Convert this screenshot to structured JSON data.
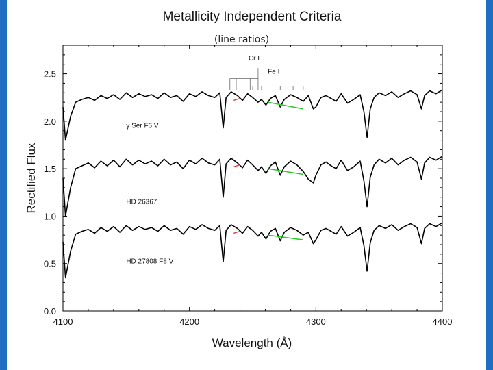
{
  "chart_data": {
    "type": "line",
    "title": "Metallicity Independent Criteria",
    "subtitle": "(line ratios)",
    "xlabel": "Wavelength (Å)",
    "ylabel": "Rectified Flux",
    "xlim": [
      4100,
      4400
    ],
    "ylim": [
      0.0,
      2.8
    ],
    "xticks": [
      4100,
      4200,
      4300,
      4400
    ],
    "yticks": [
      0.0,
      0.5,
      1.0,
      1.5,
      2.0,
      2.5
    ],
    "xtick_labels": [
      "4100",
      "4200",
      "4300",
      "4400"
    ],
    "ytick_labels": [
      "0.0",
      "0.5",
      "1.0",
      "1.5",
      "2.0",
      "2.5"
    ],
    "grid": false,
    "line_color": "#000000",
    "continuum_color": "#22cc22",
    "marker_color": "#dd2222",
    "line_ids": [
      {
        "label": "Cr I",
        "x": 4254.3,
        "bracket": [
          4232,
          4254.3
        ]
      },
      {
        "label": "Fe I",
        "x": 4260.5,
        "bracket": [
          4250,
          4290
        ]
      }
    ],
    "series": [
      {
        "name": "γ Ser  F6 V",
        "offset": 1.35,
        "x": [
          4100,
          4102,
          4106,
          4110,
          4115,
          4120,
          4125,
          4130,
          4135,
          4140,
          4145,
          4150,
          4155,
          4160,
          4165,
          4170,
          4175,
          4180,
          4185,
          4190,
          4195,
          4200,
          4205,
          4210,
          4215,
          4220,
          4224,
          4226.7,
          4229,
          4233,
          4238,
          4242,
          4246,
          4250,
          4254.3,
          4257,
          4260.5,
          4264,
          4268,
          4271.8,
          4275,
          4280,
          4285,
          4290,
          4294,
          4298,
          4300,
          4304,
          4308,
          4312,
          4316,
          4320,
          4325,
          4330,
          4335,
          4338,
          4340.5,
          4343,
          4346,
          4350,
          4355,
          4360,
          4365,
          4370,
          4375,
          4380,
          4383.5,
          4386,
          4390,
          4395,
          4400
        ],
        "values": [
          0.8,
          0.45,
          0.7,
          0.85,
          0.88,
          0.9,
          0.87,
          0.92,
          0.89,
          0.93,
          0.88,
          0.95,
          0.9,
          0.94,
          0.91,
          0.93,
          0.89,
          0.95,
          0.9,
          0.92,
          0.86,
          0.94,
          0.91,
          0.96,
          0.92,
          0.9,
          0.95,
          0.58,
          0.9,
          0.96,
          0.92,
          0.87,
          0.94,
          0.9,
          0.85,
          0.88,
          0.82,
          0.89,
          0.92,
          0.8,
          0.88,
          0.93,
          0.9,
          0.86,
          0.92,
          0.78,
          0.8,
          0.9,
          0.92,
          0.89,
          0.86,
          0.94,
          0.84,
          0.88,
          0.93,
          0.75,
          0.48,
          0.78,
          0.9,
          0.95,
          0.92,
          0.96,
          0.9,
          0.94,
          0.97,
          0.93,
          0.78,
          0.92,
          0.97,
          0.94,
          0.98
        ],
        "continuum": [
          [
            4262,
            0.85
          ],
          [
            4290,
            0.78
          ]
        ],
        "marker": [
          [
            4235,
            0.87
          ],
          [
            4240,
            0.89
          ]
        ]
      },
      {
        "name": "HD 26367",
        "offset": 0.65,
        "x": [
          4100,
          4102,
          4106,
          4110,
          4115,
          4120,
          4125,
          4130,
          4135,
          4140,
          4145,
          4150,
          4155,
          4160,
          4165,
          4170,
          4175,
          4180,
          4185,
          4190,
          4195,
          4200,
          4205,
          4210,
          4215,
          4220,
          4224,
          4226.7,
          4229,
          4233,
          4238,
          4242,
          4246,
          4250,
          4254.3,
          4257,
          4260.5,
          4264,
          4268,
          4271.8,
          4275,
          4280,
          4285,
          4290,
          4294,
          4298,
          4300,
          4304,
          4308,
          4312,
          4316,
          4320,
          4325,
          4330,
          4335,
          4338,
          4340.5,
          4343,
          4346,
          4350,
          4355,
          4360,
          4365,
          4370,
          4375,
          4380,
          4383.5,
          4386,
          4390,
          4395,
          4400
        ],
        "values": [
          0.75,
          0.35,
          0.65,
          0.85,
          0.88,
          0.91,
          0.86,
          0.93,
          0.88,
          0.94,
          0.87,
          0.95,
          0.89,
          0.94,
          0.9,
          0.93,
          0.88,
          0.95,
          0.89,
          0.92,
          0.85,
          0.94,
          0.9,
          0.96,
          0.91,
          0.89,
          0.95,
          0.55,
          0.9,
          0.96,
          0.91,
          0.86,
          0.94,
          0.89,
          0.83,
          0.87,
          0.8,
          0.88,
          0.92,
          0.78,
          0.87,
          0.93,
          0.89,
          0.82,
          0.74,
          0.7,
          0.78,
          0.89,
          0.92,
          0.88,
          0.85,
          0.94,
          0.83,
          0.87,
          0.93,
          0.72,
          0.45,
          0.76,
          0.89,
          0.95,
          0.91,
          0.96,
          0.89,
          0.94,
          0.97,
          0.92,
          0.74,
          0.91,
          0.97,
          0.94,
          0.98
        ],
        "continuum": [
          [
            4262,
            0.85
          ],
          [
            4290,
            0.79
          ]
        ],
        "marker": [
          [
            4235,
            0.87
          ],
          [
            4240,
            0.89
          ]
        ]
      },
      {
        "name": "HD 27808  F8 V",
        "offset": -0.05,
        "x": [
          4100,
          4102,
          4106,
          4110,
          4115,
          4120,
          4125,
          4130,
          4135,
          4140,
          4145,
          4150,
          4155,
          4160,
          4165,
          4170,
          4175,
          4180,
          4185,
          4190,
          4195,
          4200,
          4205,
          4210,
          4215,
          4220,
          4224,
          4226.7,
          4229,
          4233,
          4238,
          4242,
          4246,
          4250,
          4254.3,
          4257,
          4260.5,
          4264,
          4268,
          4271.8,
          4275,
          4280,
          4285,
          4290,
          4294,
          4298,
          4300,
          4304,
          4308,
          4312,
          4316,
          4320,
          4325,
          4330,
          4335,
          4338,
          4340.5,
          4343,
          4346,
          4350,
          4355,
          4360,
          4365,
          4370,
          4375,
          4380,
          4383.5,
          4386,
          4390,
          4395,
          4400
        ],
        "values": [
          0.78,
          0.4,
          0.68,
          0.86,
          0.89,
          0.91,
          0.87,
          0.93,
          0.89,
          0.94,
          0.88,
          0.95,
          0.9,
          0.94,
          0.91,
          0.93,
          0.89,
          0.95,
          0.9,
          0.92,
          0.86,
          0.94,
          0.91,
          0.96,
          0.92,
          0.9,
          0.95,
          0.57,
          0.9,
          0.96,
          0.92,
          0.87,
          0.94,
          0.9,
          0.84,
          0.88,
          0.81,
          0.89,
          0.92,
          0.79,
          0.88,
          0.93,
          0.9,
          0.85,
          0.88,
          0.76,
          0.8,
          0.9,
          0.92,
          0.89,
          0.86,
          0.94,
          0.84,
          0.88,
          0.93,
          0.74,
          0.47,
          0.77,
          0.9,
          0.95,
          0.92,
          0.96,
          0.9,
          0.94,
          0.97,
          0.93,
          0.76,
          0.92,
          0.97,
          0.94,
          0.98
        ],
        "continuum": [
          [
            4262,
            0.85
          ],
          [
            4290,
            0.8
          ]
        ],
        "marker": [
          [
            4235,
            0.87
          ],
          [
            4240,
            0.89
          ]
        ]
      }
    ]
  }
}
